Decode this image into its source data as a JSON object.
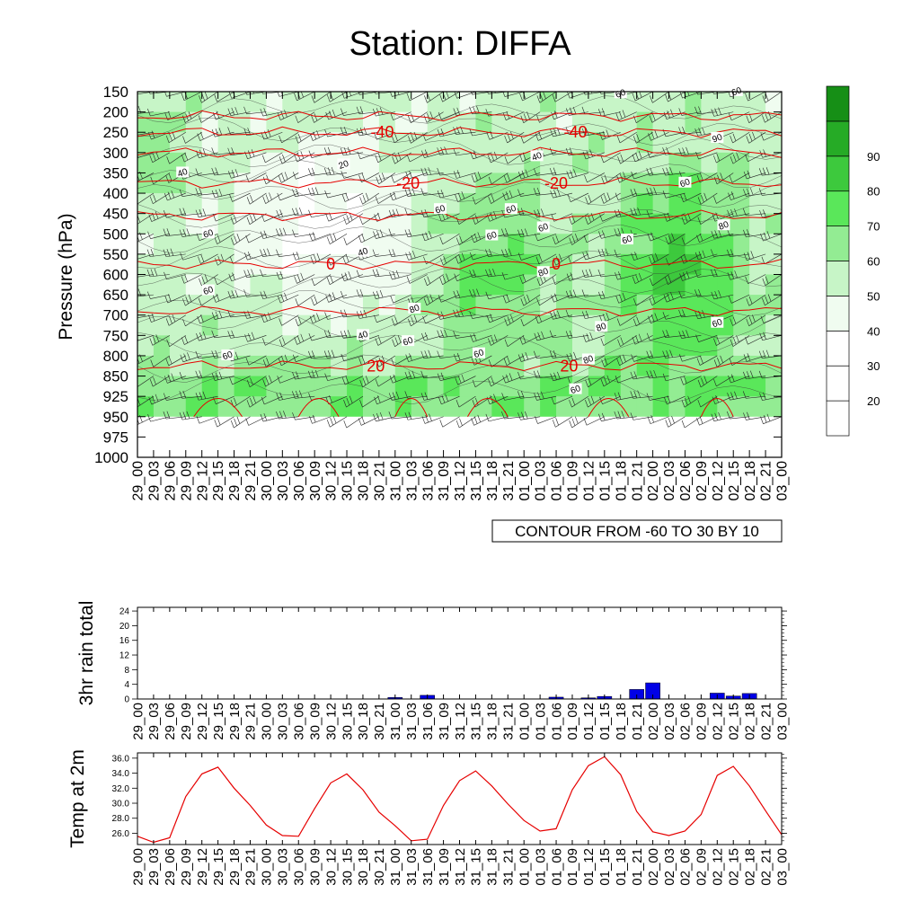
{
  "title": "Station: DIFFA",
  "colors": {
    "rh_fill": [
      "#ffffff",
      "#ffffff",
      "#ffffff",
      "#f0fcf0",
      "#c7f5c7",
      "#93ec93",
      "#5ae75a",
      "#3dc93d",
      "#26ab26",
      "#168f16"
    ],
    "temp_contour": "#e60000",
    "rain_bar": "#0000e6",
    "temp_line": "#e60000"
  },
  "chart_data": [
    {
      "type": "contour",
      "name": "relative-humidity-cross-section",
      "ylabel": "Pressure (hPa)",
      "pressure_levels": [
        150,
        200,
        250,
        300,
        350,
        400,
        450,
        500,
        550,
        600,
        650,
        700,
        750,
        800,
        850,
        925,
        950,
        975,
        1000
      ],
      "times": [
        "29_00",
        "29_03",
        "29_06",
        "29_09",
        "29_12",
        "29_15",
        "29_18",
        "29_21",
        "30_00",
        "30_03",
        "30_06",
        "30_09",
        "30_12",
        "30_15",
        "30_18",
        "30_21",
        "31_00",
        "31_03",
        "31_06",
        "31_09",
        "31_12",
        "31_15",
        "31_18",
        "31_21",
        "01_00",
        "01_03",
        "01_06",
        "01_09",
        "01_12",
        "01_15",
        "01_18",
        "01_21",
        "02_00",
        "02_03",
        "02_06",
        "02_09",
        "02_12",
        "02_15",
        "02_18",
        "02_21",
        "03_00"
      ],
      "contour_info": "CONTOUR FROM -60 TO 30 BY 10",
      "colorbar_labels": [
        "20",
        "30",
        "40",
        "50",
        "60",
        "70",
        "80",
        "90"
      ],
      "rh_labels": [
        "40",
        "20",
        "40",
        "40",
        "60",
        "60",
        "60",
        "60",
        "80",
        "90",
        "80",
        "60",
        "60",
        "60",
        "60",
        "80",
        "80",
        "60",
        "60",
        "40",
        "60",
        "60",
        "60",
        "80",
        "60",
        "60"
      ],
      "temperature_contours": [
        {
          "label": "-40",
          "pressure": 250
        },
        {
          "label": "-20",
          "pressure": 375
        },
        {
          "label": "0",
          "pressure": 575
        },
        {
          "label": "20",
          "pressure": 825
        }
      ]
    },
    {
      "type": "bar",
      "name": "3hr-rain-total",
      "ylabel": "3hr rain total",
      "ylim": [
        0,
        25
      ],
      "yticks": [
        "0",
        "4",
        "8",
        "12",
        "16",
        "20",
        "24"
      ],
      "categories": [
        "29_00",
        "29_03",
        "29_06",
        "29_09",
        "29_12",
        "29_15",
        "29_18",
        "29_21",
        "30_00",
        "30_03",
        "30_06",
        "30_09",
        "30_12",
        "30_15",
        "30_18",
        "30_21",
        "31_00",
        "31_03",
        "31_06",
        "31_09",
        "31_12",
        "31_15",
        "31_18",
        "31_21",
        "01_00",
        "01_03",
        "01_06",
        "01_09",
        "01_12",
        "01_15",
        "01_18",
        "01_21",
        "02_00",
        "02_03",
        "02_06",
        "02_09",
        "02_12",
        "02_15",
        "02_18",
        "02_21",
        "03_00"
      ],
      "values": [
        0,
        0,
        0,
        0,
        0,
        0,
        0,
        0,
        0,
        0,
        0,
        0,
        0,
        0,
        0,
        0,
        0.4,
        0,
        1.0,
        0,
        0,
        0,
        0,
        0,
        0,
        0,
        0.5,
        0,
        0.3,
        0.7,
        0,
        2.6,
        4.4,
        0,
        0,
        0,
        1.6,
        0.8,
        1.5,
        0,
        0
      ]
    },
    {
      "type": "line",
      "name": "temp-at-2m",
      "ylabel": "Temp at 2m",
      "ylim": [
        24.5,
        36.7
      ],
      "yticks": [
        "26.0",
        "28.0",
        "30.0",
        "32.0",
        "34.0",
        "36.0"
      ],
      "categories": [
        "29_00",
        "29_03",
        "29_06",
        "29_09",
        "29_12",
        "29_15",
        "29_18",
        "29_21",
        "30_00",
        "30_03",
        "30_06",
        "30_09",
        "30_12",
        "30_15",
        "30_18",
        "30_21",
        "31_00",
        "31_03",
        "31_06",
        "31_09",
        "31_12",
        "31_15",
        "31_18",
        "31_21",
        "01_00",
        "01_03",
        "01_06",
        "01_09",
        "01_12",
        "01_15",
        "01_18",
        "01_21",
        "02_00",
        "02_03",
        "02_06",
        "02_09",
        "02_12",
        "02_15",
        "02_18",
        "02_21",
        "03_00"
      ],
      "values": [
        25.6,
        24.8,
        25.4,
        30.9,
        33.9,
        34.8,
        32.0,
        29.7,
        27.1,
        25.7,
        25.6,
        29.3,
        32.7,
        33.9,
        31.8,
        28.8,
        27.0,
        25.0,
        25.2,
        29.7,
        33.0,
        34.3,
        32.3,
        29.9,
        27.7,
        26.3,
        26.6,
        31.8,
        35.0,
        36.2,
        33.8,
        28.9,
        26.2,
        25.7,
        26.3,
        28.5,
        33.7,
        34.9,
        32.3,
        29.0,
        25.8
      ]
    }
  ]
}
